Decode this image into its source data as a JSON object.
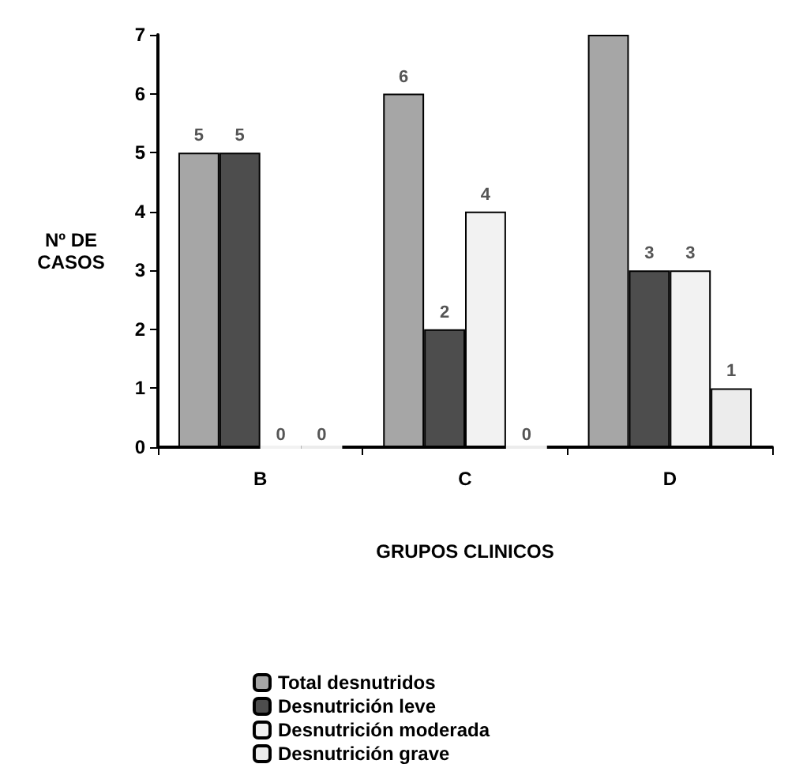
{
  "chart_data": {
    "type": "bar",
    "xlabel": "GRUPOS CLINICOS",
    "ylabel": "Nº DE CASOS",
    "categories": [
      "B",
      "C",
      "D"
    ],
    "series": [
      {
        "name": "Total desnutridos",
        "color": "#a6a6a6",
        "values": [
          5,
          6,
          7
        ],
        "value_labels": [
          "5",
          "6",
          null
        ]
      },
      {
        "name": "Desnutrición leve",
        "color": "#4d4d4d",
        "values": [
          5,
          2,
          3
        ],
        "value_labels": [
          "5",
          "2",
          "3"
        ]
      },
      {
        "name": "Desnutrición moderada",
        "color": "#f2f2f2",
        "values": [
          0,
          4,
          3
        ],
        "value_labels": [
          "0",
          "4",
          "3"
        ]
      },
      {
        "name": "Desnutrición grave",
        "color": "#ececec",
        "values": [
          0,
          0,
          1
        ],
        "value_labels": [
          "0",
          "0",
          "1"
        ]
      }
    ],
    "ylim": [
      0,
      7
    ],
    "yticks": [
      0,
      1,
      2,
      3,
      4,
      5,
      6,
      7
    ],
    "grid": false,
    "legend": "bottom"
  }
}
